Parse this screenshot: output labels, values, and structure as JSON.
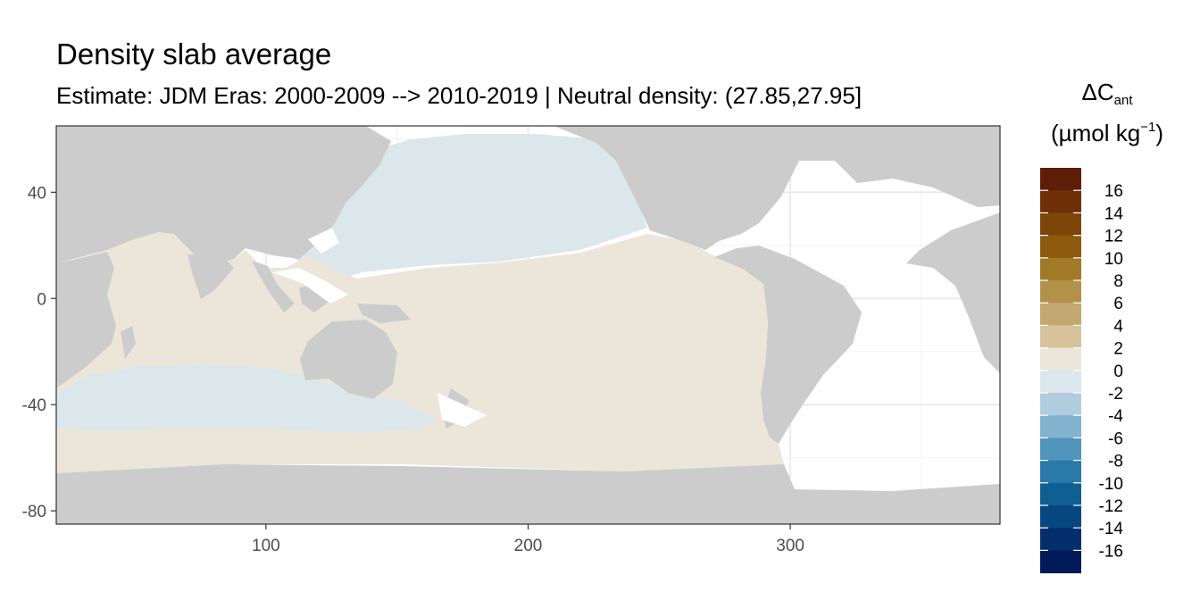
{
  "header": {
    "title": "Density slab average",
    "subtitle": "Estimate: JDM Eras: 2000-2009 --> 2010-2019 | Neutral density: (27.85,27.95]"
  },
  "legend": {
    "title_delta": "ΔC",
    "title_sub": "ant",
    "unit_prefix": "(µmol kg",
    "unit_sup": "−1",
    "unit_suffix": ")",
    "labels": [
      "16",
      "14",
      "12",
      "10",
      "8",
      "6",
      "4",
      "2",
      "0",
      "-2",
      "-4",
      "-6",
      "-8",
      "-10",
      "-12",
      "-14",
      "-16"
    ],
    "colors": [
      "#5e1d06",
      "#6f2f07",
      "#7e4508",
      "#8e5a0d",
      "#a07a27",
      "#b2924a",
      "#c3a872",
      "#d7c39b",
      "#ece6da",
      "#dce7ec",
      "#b0cde0",
      "#82b2cd",
      "#5295bb",
      "#2b79a8",
      "#0f5e94",
      "#07477f",
      "#042f6c",
      "#001a58"
    ]
  },
  "chart_data": {
    "type": "heatmap",
    "title": "Density slab average",
    "subtitle": "Estimate: JDM Eras: 2000-2009 --> 2010-2019 | Neutral density: (27.85,27.95]",
    "xlabel": "",
    "ylabel": "",
    "x_ticks": [
      100,
      200,
      300
    ],
    "y_ticks": [
      40,
      0,
      -40,
      -80
    ],
    "xlim": [
      20,
      380
    ],
    "ylim": [
      -85,
      65
    ],
    "grid": true,
    "legend_position": "right",
    "color_scale": {
      "variable": "ΔCant",
      "unit": "µmol kg−1",
      "breaks": [
        16,
        14,
        12,
        10,
        8,
        6,
        4,
        2,
        0,
        -2,
        -4,
        -6,
        -8,
        -10,
        -12,
        -14,
        -16
      ],
      "limits": [
        -18,
        18
      ]
    },
    "regions": [
      {
        "name": "North Pacific",
        "class": "-2 to 0"
      },
      {
        "name": "Southern Indian Ocean band",
        "class": "-2 to 0"
      },
      {
        "name": "Indian Ocean",
        "class": "0 to 2"
      },
      {
        "name": "South and Equatorial Pacific",
        "class": "0 to 2"
      },
      {
        "name": "Southern Ocean (Indo-Pacific sector)",
        "class": "0 to 2"
      }
    ],
    "land_color": "#cccccc",
    "no_data_color": "#ffffff"
  }
}
